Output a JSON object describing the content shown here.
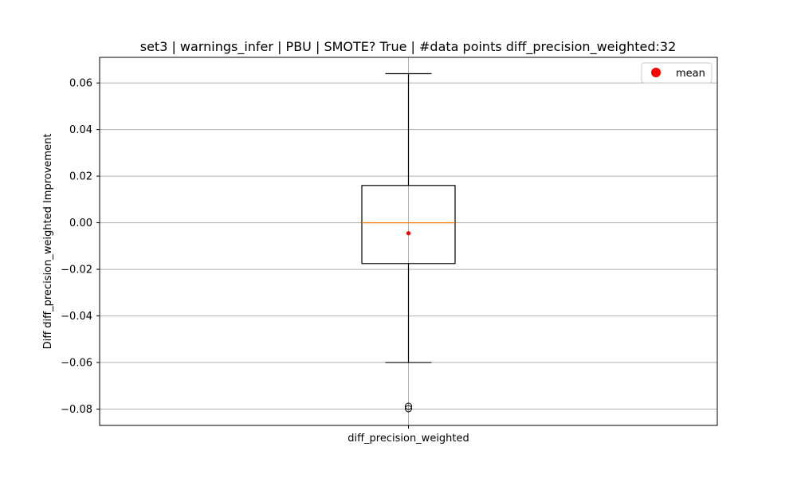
{
  "chart_data": {
    "type": "box",
    "title": "set3 | warnings_infer | PBU | SMOTE? True | #data points diff_precision_weighted:32",
    "xlabel": "",
    "ylabel": "Diff diff_precision_weighted Improvement",
    "categories": [
      "diff_precision_weighted"
    ],
    "ylim": [
      -0.087,
      0.071
    ],
    "yticks": [
      0.06,
      0.04,
      0.02,
      0.0,
      -0.02,
      -0.04,
      -0.06,
      -0.08
    ],
    "ytick_labels": [
      "0.06",
      "0.04",
      "0.02",
      "0.00",
      "−0.02",
      "−0.04",
      "−0.06",
      "−0.08"
    ],
    "grid": true,
    "legend": {
      "placement": "upper right",
      "entries": [
        "mean"
      ]
    },
    "box": {
      "whisker_high": 0.064,
      "q3": 0.016,
      "median": 0.0,
      "q1": -0.0175,
      "whisker_low": -0.06,
      "mean": -0.0045,
      "outliers": [
        -0.0788,
        -0.0798
      ]
    },
    "colors": {
      "median": "#ff7f0e",
      "mean": "#ff0000",
      "grid": "#b0b0b0"
    }
  }
}
